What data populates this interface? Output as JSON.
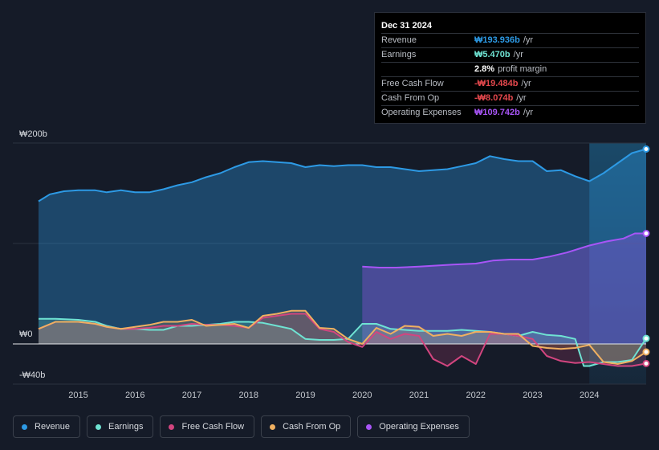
{
  "tooltip": {
    "date": "Dec 31 2024",
    "rows": [
      {
        "label": "Revenue",
        "value": "₩193.936b",
        "unit": "/yr",
        "color": "#2d9ae5"
      },
      {
        "label": "Earnings",
        "value": "₩5.470b",
        "unit": "/yr",
        "color": "#6fe3d3"
      },
      {
        "label": "",
        "value": "2.8%",
        "unit": "profit margin",
        "color": "#ffffff"
      },
      {
        "label": "Free Cash Flow",
        "value": "-₩19.484b",
        "unit": "/yr",
        "color": "#e5484d"
      },
      {
        "label": "Cash From Op",
        "value": "-₩8.074b",
        "unit": "/yr",
        "color": "#e5484d"
      },
      {
        "label": "Operating Expenses",
        "value": "₩109.742b",
        "unit": "/yr",
        "color": "#a855f7"
      }
    ]
  },
  "legend": [
    {
      "label": "Revenue",
      "color": "#2d9ae5"
    },
    {
      "label": "Earnings",
      "color": "#6fe3d3"
    },
    {
      "label": "Free Cash Flow",
      "color": "#d2457f"
    },
    {
      "label": "Cash From Op",
      "color": "#f0b061"
    },
    {
      "label": "Operating Expenses",
      "color": "#a855f7"
    }
  ],
  "chart_data": {
    "type": "area",
    "title": "",
    "xlabel": "",
    "ylabel": "",
    "y_tick_labels": [
      "₩200b",
      "₩0",
      "-₩40b"
    ],
    "y_ticks": [
      200,
      0,
      -40
    ],
    "ylim": [
      -40,
      200
    ],
    "xlim": [
      2014.3,
      2025.0
    ],
    "x_tick_labels": [
      "2015",
      "2016",
      "2017",
      "2018",
      "2019",
      "2020",
      "2021",
      "2022",
      "2023",
      "2024"
    ],
    "x_ticks": [
      2015,
      2016,
      2017,
      2018,
      2019,
      2020,
      2021,
      2022,
      2023,
      2024
    ],
    "highlight_from": 2024.0,
    "series": [
      {
        "name": "Revenue",
        "color": "#2d9ae5",
        "x": [
          2014.3,
          2014.5,
          2014.75,
          2015.0,
          2015.3,
          2015.5,
          2015.75,
          2016.0,
          2016.25,
          2016.5,
          2016.75,
          2017.0,
          2017.25,
          2017.5,
          2017.75,
          2018.0,
          2018.25,
          2018.5,
          2018.75,
          2019.0,
          2019.25,
          2019.5,
          2019.75,
          2020.0,
          2020.25,
          2020.5,
          2020.75,
          2021.0,
          2021.25,
          2021.5,
          2021.75,
          2022.0,
          2022.25,
          2022.5,
          2022.75,
          2023.0,
          2023.25,
          2023.5,
          2023.75,
          2024.0,
          2024.25,
          2024.5,
          2024.75,
          2025.0
        ],
        "values": [
          142,
          149,
          152,
          153,
          153,
          151,
          153,
          151,
          151,
          154,
          158,
          161,
          166,
          170,
          176,
          181,
          182,
          181,
          180,
          176,
          178,
          177,
          178,
          178,
          176,
          176,
          174,
          172,
          173,
          174,
          177,
          180,
          187,
          184,
          182,
          182,
          172,
          173,
          167,
          162,
          170,
          180,
          190,
          194
        ]
      },
      {
        "name": "Operating Expenses",
        "color": "#a855f7",
        "x": [
          2020.0,
          2020.3,
          2020.6,
          2021.0,
          2021.3,
          2021.6,
          2022.0,
          2022.3,
          2022.6,
          2023.0,
          2023.3,
          2023.6,
          2024.0,
          2024.3,
          2024.6,
          2024.8,
          2025.0
        ],
        "values": [
          77,
          76,
          76,
          77,
          78,
          79,
          80,
          83,
          84,
          84,
          87,
          91,
          98,
          102,
          105,
          110,
          110
        ]
      },
      {
        "name": "Earnings",
        "color": "#6fe3d3",
        "x": [
          2014.3,
          2014.6,
          2015.0,
          2015.3,
          2015.5,
          2015.75,
          2016.0,
          2016.25,
          2016.5,
          2016.75,
          2017.0,
          2017.25,
          2017.5,
          2017.75,
          2018.0,
          2018.25,
          2018.5,
          2018.75,
          2019.0,
          2019.25,
          2019.5,
          2019.75,
          2020.0,
          2020.25,
          2020.5,
          2020.75,
          2021.0,
          2021.25,
          2021.5,
          2021.75,
          2022.0,
          2022.25,
          2022.5,
          2022.75,
          2023.0,
          2023.25,
          2023.5,
          2023.75,
          2023.9,
          2024.0,
          2024.25,
          2024.5,
          2024.75,
          2025.0
        ],
        "values": [
          25,
          25,
          24,
          22,
          18,
          15,
          15,
          14,
          14,
          18,
          18,
          19,
          20,
          22,
          22,
          21,
          18,
          15,
          5,
          4,
          4,
          5,
          20,
          20,
          15,
          14,
          13,
          13,
          13,
          14,
          13,
          12,
          10,
          8,
          12,
          9,
          8,
          5,
          -22,
          -22,
          -18,
          -18,
          -16,
          5.47
        ]
      },
      {
        "name": "Free Cash Flow",
        "color": "#d2457f",
        "x": [
          2014.3,
          2014.6,
          2015.0,
          2015.3,
          2015.5,
          2015.75,
          2016.0,
          2016.25,
          2016.5,
          2016.75,
          2017.0,
          2017.25,
          2017.5,
          2017.75,
          2018.0,
          2018.25,
          2018.5,
          2018.75,
          2019.0,
          2019.25,
          2019.5,
          2019.75,
          2020.0,
          2020.25,
          2020.5,
          2020.75,
          2021.0,
          2021.25,
          2021.5,
          2021.75,
          2022.0,
          2022.25,
          2022.5,
          2022.75,
          2023.0,
          2023.25,
          2023.5,
          2023.75,
          2024.0,
          2024.25,
          2024.5,
          2024.75,
          2025.0
        ],
        "values": [
          15,
          22,
          22,
          20,
          17,
          15,
          15,
          16,
          18,
          18,
          20,
          19,
          19,
          18,
          16,
          26,
          28,
          30,
          30,
          15,
          12,
          2,
          -3,
          12,
          5,
          10,
          8,
          -15,
          -22,
          -12,
          -20,
          10,
          10,
          8,
          5,
          -12,
          -17,
          -19,
          -18,
          -20,
          -22,
          -22,
          -19.5
        ]
      },
      {
        "name": "Cash From Op",
        "color": "#f0b061",
        "x": [
          2014.3,
          2014.6,
          2015.0,
          2015.3,
          2015.5,
          2015.75,
          2016.0,
          2016.25,
          2016.5,
          2016.75,
          2017.0,
          2017.25,
          2017.5,
          2017.75,
          2018.0,
          2018.25,
          2018.5,
          2018.75,
          2019.0,
          2019.25,
          2019.5,
          2019.75,
          2020.0,
          2020.25,
          2020.5,
          2020.75,
          2021.0,
          2021.25,
          2021.5,
          2021.75,
          2022.0,
          2022.25,
          2022.5,
          2022.75,
          2023.0,
          2023.25,
          2023.5,
          2023.75,
          2024.0,
          2024.25,
          2024.5,
          2024.75,
          2025.0
        ],
        "values": [
          15,
          22,
          22,
          20,
          17,
          15,
          17,
          19,
          22,
          22,
          24,
          18,
          19,
          20,
          16,
          28,
          30,
          33,
          33,
          16,
          15,
          5,
          0,
          16,
          10,
          18,
          17,
          8,
          10,
          8,
          12,
          12,
          10,
          10,
          -2,
          -4,
          -5,
          -4,
          -1,
          -18,
          -20,
          -17,
          -8
        ]
      }
    ]
  }
}
